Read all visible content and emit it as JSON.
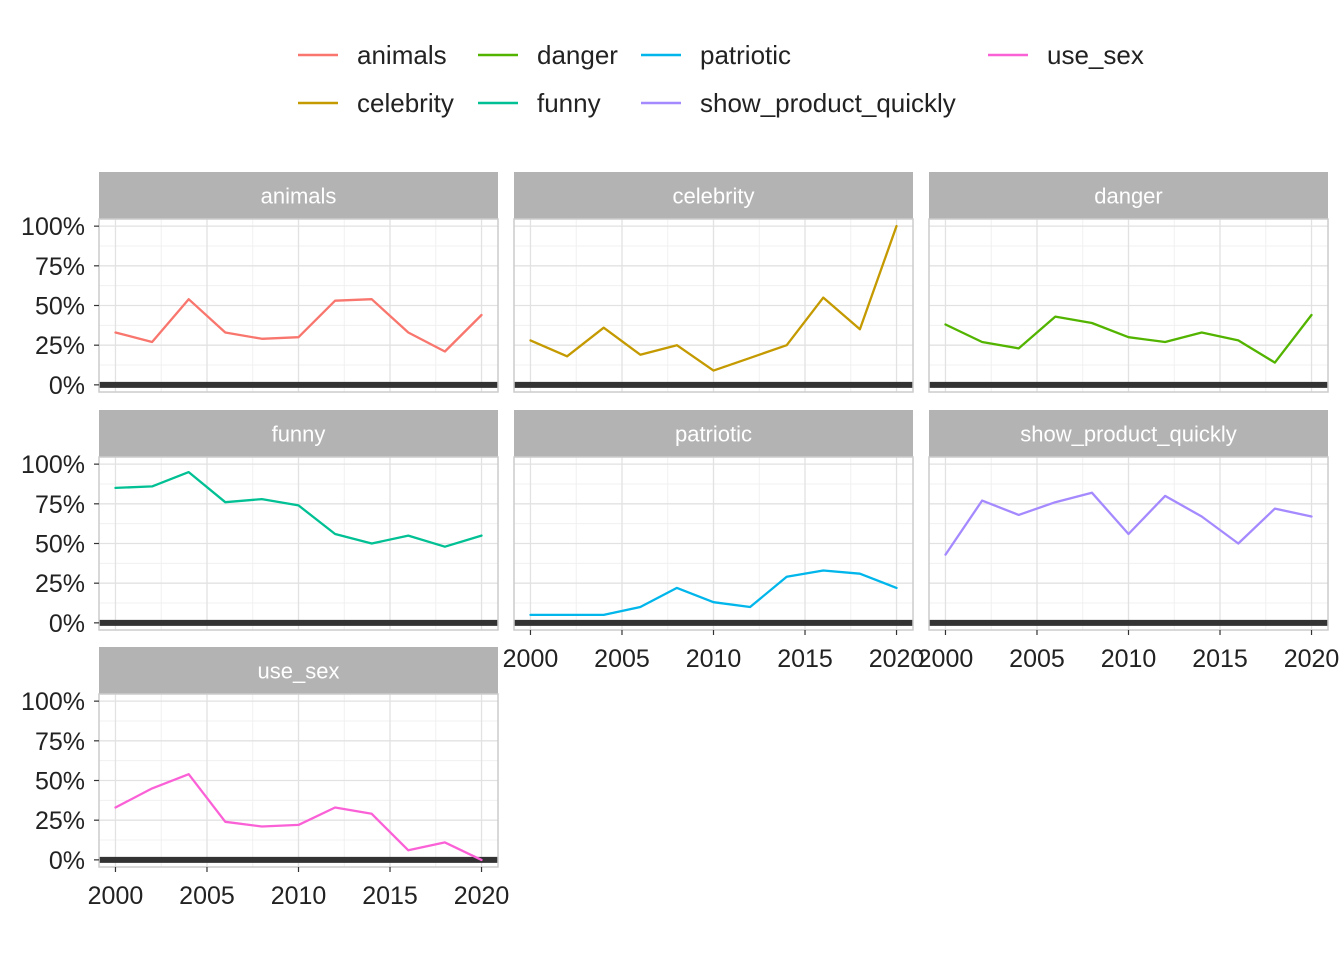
{
  "chart_data": {
    "type": "line",
    "layout": "facet-grid-3-columns",
    "x_range": [
      2000,
      2020
    ],
    "y_range": [
      0,
      1
    ],
    "x_ticks": [
      2000,
      2005,
      2010,
      2015,
      2020
    ],
    "x_tick_labels": [
      "2000",
      "2005",
      "2010",
      "2015",
      "2020"
    ],
    "y_ticks": [
      0,
      0.25,
      0.5,
      0.75,
      1
    ],
    "y_tick_labels": [
      "0%",
      "25%",
      "50%",
      "75%",
      "100%"
    ],
    "grid": true,
    "baseline": 0,
    "legend_position": "top",
    "x": [
      2000,
      2002,
      2004,
      2006,
      2008,
      2010,
      2012,
      2014,
      2016,
      2018,
      2020
    ],
    "series": [
      {
        "name": "animals",
        "color": "#F8766D",
        "values": [
          0.33,
          0.27,
          0.54,
          0.33,
          0.29,
          0.3,
          0.53,
          0.54,
          0.33,
          0.21,
          0.44
        ]
      },
      {
        "name": "celebrity",
        "color": "#C49A00",
        "values": [
          0.28,
          0.18,
          0.36,
          0.19,
          0.25,
          0.09,
          0.17,
          0.25,
          0.55,
          0.35,
          1.0
        ]
      },
      {
        "name": "danger",
        "color": "#53B400",
        "values": [
          0.38,
          0.27,
          0.23,
          0.43,
          0.39,
          0.3,
          0.27,
          0.33,
          0.28,
          0.14,
          0.44
        ]
      },
      {
        "name": "funny",
        "color": "#00C094",
        "values": [
          0.85,
          0.86,
          0.95,
          0.76,
          0.78,
          0.74,
          0.56,
          0.5,
          0.55,
          0.48,
          0.55
        ]
      },
      {
        "name": "patriotic",
        "color": "#00B6EB",
        "values": [
          0.05,
          0.05,
          0.05,
          0.1,
          0.22,
          0.13,
          0.1,
          0.29,
          0.33,
          0.31,
          0.22
        ]
      },
      {
        "name": "show_product_quickly",
        "color": "#A58AFF",
        "values": [
          0.43,
          0.77,
          0.68,
          0.76,
          0.82,
          0.56,
          0.8,
          0.67,
          0.5,
          0.72,
          0.67
        ]
      },
      {
        "name": "use_sex",
        "color": "#FB61D7",
        "values": [
          0.33,
          0.45,
          0.54,
          0.24,
          0.21,
          0.22,
          0.33,
          0.29,
          0.06,
          0.11,
          0.0
        ]
      }
    ]
  }
}
